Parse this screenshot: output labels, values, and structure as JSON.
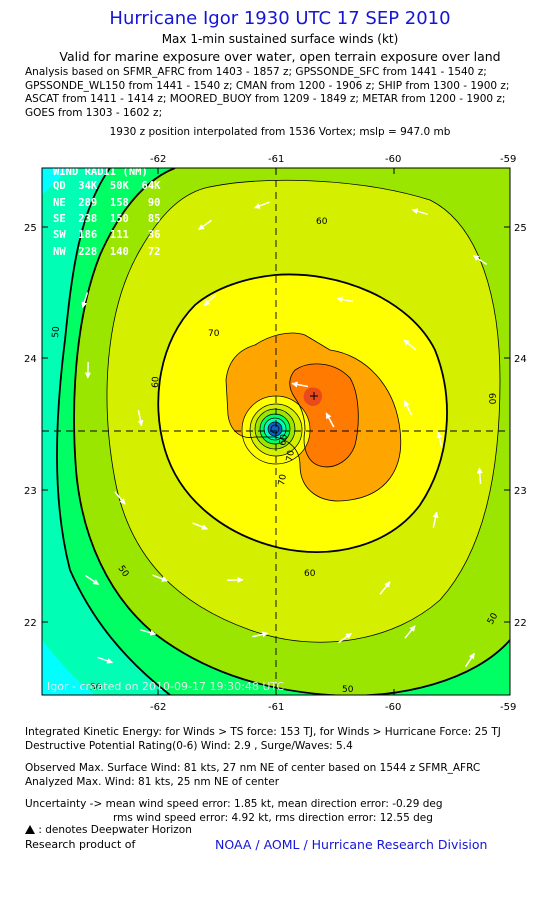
{
  "header": {
    "title": "Hurricane Igor 1930 UTC 17 SEP 2010",
    "subtitle": "Max 1-min sustained surface winds (kt)",
    "validity": "Valid for marine exposure over water, open terrain exposure over land",
    "analysis_lines": [
      "Analysis based on SFMR_AFRC from 1403 - 1857 z; GPSSONDE_SFC from 1441 - 1540 z;",
      "GPSSONDE_WL150 from 1441 - 1540 z; CMAN from 1200 - 1906 z; SHIP from 1300 - 1900 z;",
      "ASCAT from 1411 - 1414 z; MOORED_BUOY from 1209 - 1849 z; METAR from 1200 - 1900 z;",
      "GOES from 1303 - 1602 z;"
    ],
    "position_line": "1930 z position interpolated from 1536 Vortex; mslp = 947.0 mb"
  },
  "map": {
    "lon_ticks": [
      "-62",
      "-61",
      "-60",
      "-59"
    ],
    "lat_ticks": [
      "25",
      "24",
      "23",
      "22"
    ],
    "center": {
      "lon": -60.87,
      "lat": 23.45
    },
    "extent": {
      "lon": [
        -62.98,
        -58.9
      ],
      "lat": [
        21.5,
        25.45
      ]
    },
    "contour_labels": [
      "50",
      "60",
      "70",
      "60",
      "50",
      "60",
      "60",
      "50",
      "70",
      "70",
      "60",
      "50",
      "50"
    ],
    "fill_colors": {
      "wind_lt_30": "#00ffff",
      "wind_30_40": "#00ffb4",
      "wind_40_50": "#00ff64",
      "wind_50_55": "#9be600",
      "wind_55_60": "#d4f000",
      "wind_60_70": "#ffff00",
      "wind_70_75": "#ffa500",
      "wind_75_80": "#ff7a00",
      "wind_ge_80": "#e84a1a",
      "eye_inner": "#0a64c8"
    },
    "wind_radii": {
      "header": "WIND RADII (NM)",
      "columns": "QD  34K  50K  64K",
      "rows": [
        "NE  289  158   90",
        "SE  238  150   85",
        "SW  186  111   36",
        "NW  228  140   72"
      ]
    },
    "credit": "Igor - created on 2010-09-17 19:30:48 UTC"
  },
  "footer": {
    "ike_line": "Integrated Kinetic Energy:  for Winds > TS force: 153 TJ,  for Winds > Hurricane Force: 25 TJ",
    "dpr_line": "Destructive Potential Rating(0-6)   Wind: 2.9 , Surge/Waves: 5.4",
    "observed_line": "Observed Max. Surface Wind: 81 kts, 27 nm NE of center based on 1544 z SFMR_AFRC",
    "analyzed_line": "Analyzed Max. Wind: 81 kts, 25 nm NE of center",
    "uncertainty_line1": "Uncertainty -> mean wind speed error: 1.85 kt,   mean direction error:  -0.29 deg",
    "uncertainty_line2": "rms wind speed error: 4.92 kt,   rms direction error: 12.55 deg",
    "legend_note": ": denotes Deepwater Horizon",
    "research_label": "Research product of",
    "division": "NOAA / AOML / Hurricane Research Division"
  }
}
